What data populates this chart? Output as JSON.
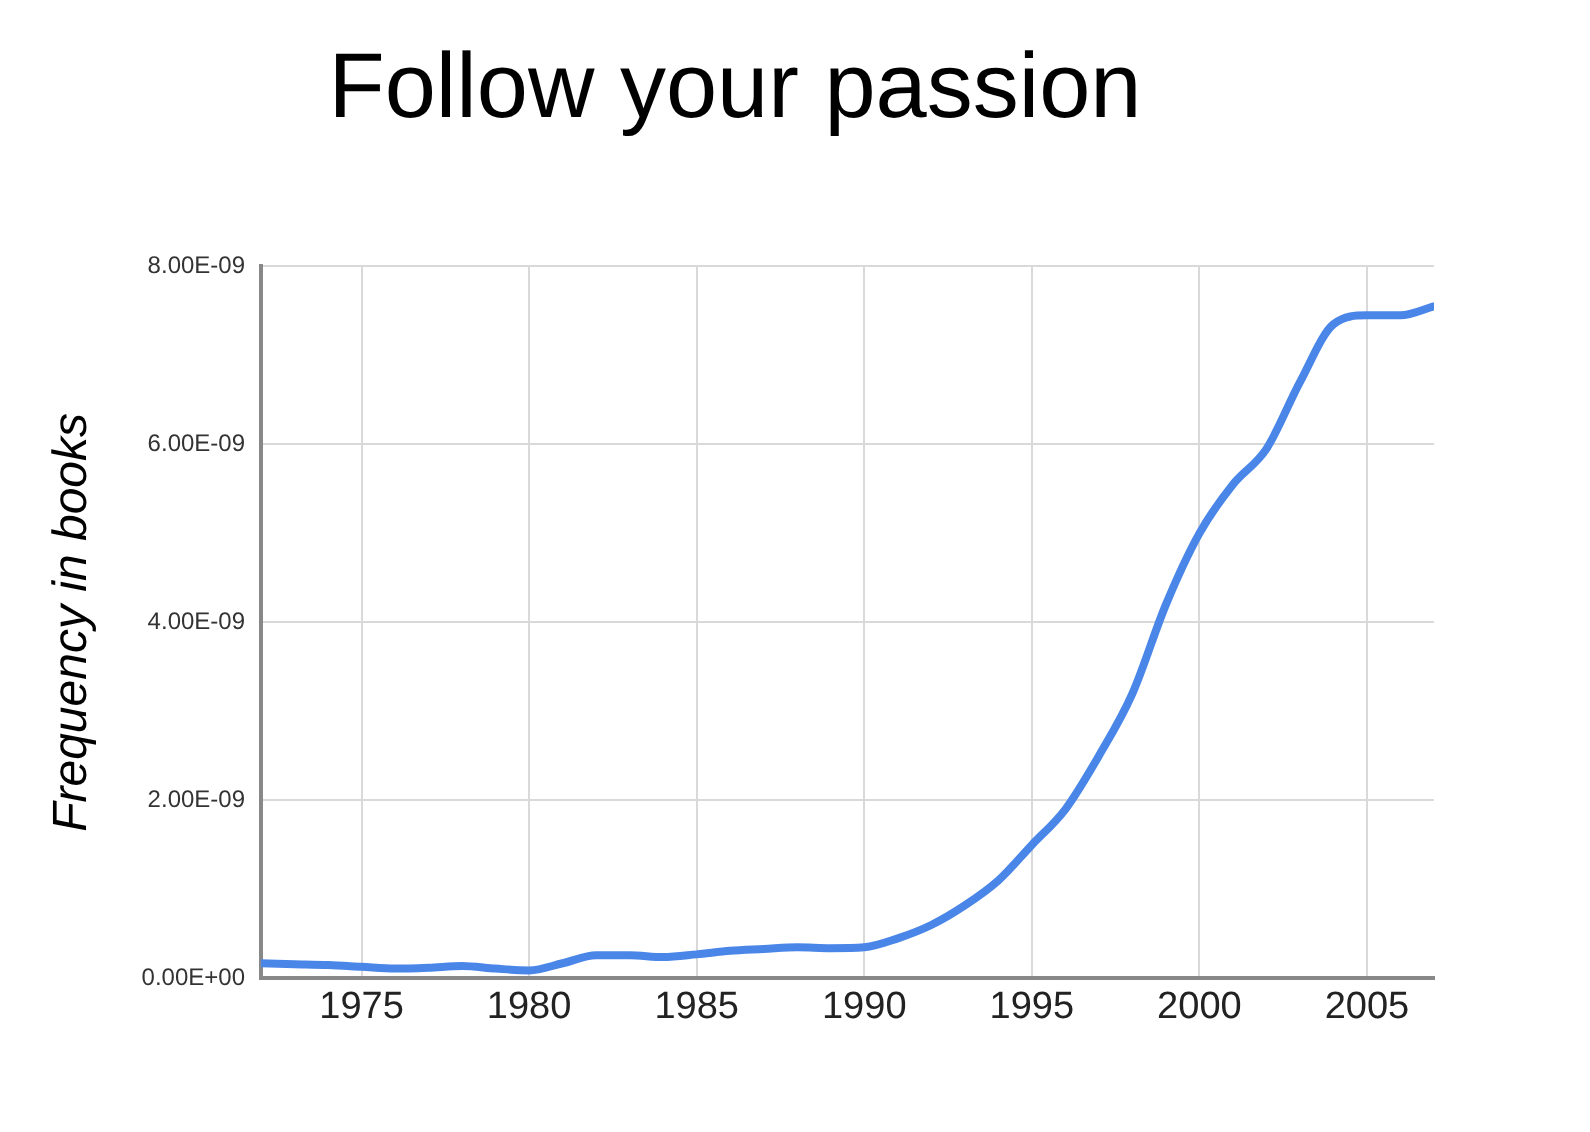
{
  "chart_data": {
    "type": "line",
    "title": "Follow your passion",
    "ylabel": "Frequency in books",
    "x": [
      1972,
      1973,
      1974,
      1975,
      1976,
      1977,
      1978,
      1979,
      1980,
      1981,
      1982,
      1983,
      1984,
      1985,
      1986,
      1987,
      1988,
      1989,
      1990,
      1991,
      1992,
      1993,
      1994,
      1995,
      1996,
      1997,
      1998,
      1999,
      2000,
      2001,
      2002,
      2003,
      2004,
      2005,
      2006,
      2007
    ],
    "series": [
      {
        "color": "#4a86e8",
        "values": [
          1.7e-10,
          1.6e-10,
          1.5e-10,
          1.3e-10,
          1.1e-10,
          1.2e-10,
          1.4e-10,
          1.1e-10,
          9e-11,
          1.7e-10,
          2.6e-10,
          2.6e-10,
          2.4e-10,
          2.7e-10,
          3.1e-10,
          3.3e-10,
          3.5e-10,
          3.4e-10,
          3.5e-10,
          4.5e-10,
          6e-10,
          8.2e-10,
          1.1e-09,
          1.5e-09,
          1.9e-09,
          2.5e-09,
          3.2e-09,
          4.2e-09,
          5e-09,
          5.55e-09,
          5.95e-09,
          6.7e-09,
          7.35e-09,
          7.45e-09,
          7.45e-09,
          7.55e-09
        ]
      }
    ],
    "xlim": [
      1972,
      2007
    ],
    "xticks": [
      1975,
      1980,
      1985,
      1990,
      1995,
      2000,
      2005
    ],
    "ylim": [
      0,
      8e-09
    ],
    "yticks": [
      {
        "value": 0,
        "label": "0.00E+00"
      },
      {
        "value": 2e-09,
        "label": "2.00E-09"
      },
      {
        "value": 4e-09,
        "label": "4.00E-09"
      },
      {
        "value": 6e-09,
        "label": "6.00E-09"
      },
      {
        "value": 8e-09,
        "label": "8.00E-09"
      }
    ],
    "grid": true,
    "legend": false,
    "marker": "none",
    "line_style": "solid"
  }
}
